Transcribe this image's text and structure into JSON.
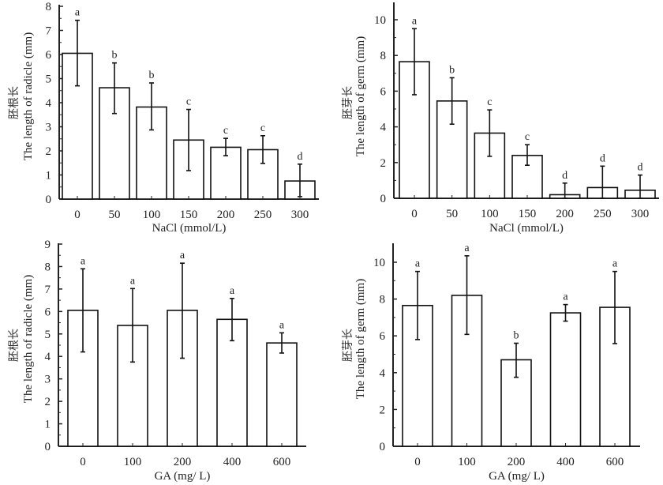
{
  "chart_data": [
    {
      "type": "bar",
      "id": "nacl-radicle",
      "categories": [
        "0",
        "50",
        "100",
        "150",
        "200",
        "250",
        "300"
      ],
      "values": [
        6.05,
        4.62,
        3.82,
        2.45,
        2.15,
        2.05,
        0.75
      ],
      "error_upper": [
        7.42,
        5.65,
        4.82,
        3.72,
        2.52,
        2.63,
        1.45
      ],
      "error_lower": [
        4.7,
        3.55,
        2.87,
        1.18,
        1.8,
        1.48,
        0.1
      ],
      "significance": [
        "a",
        "b",
        "b",
        "c",
        "c",
        "c",
        "d"
      ],
      "xlabel": "NaCl (mmol/L)",
      "ylabel_cn": "胚根长",
      "ylabel": "The length of  radicle (mm)",
      "ylim": [
        0,
        8
      ],
      "yticks": [
        "0",
        "1",
        "2",
        "3",
        "4",
        "5",
        "6",
        "7",
        "8"
      ],
      "grid": false
    },
    {
      "type": "bar",
      "id": "nacl-germ",
      "categories": [
        "0",
        "50",
        "100",
        "150",
        "200",
        "250",
        "300"
      ],
      "values": [
        7.65,
        5.45,
        3.65,
        2.4,
        0.2,
        0.6,
        0.45
      ],
      "error_upper": [
        9.5,
        6.75,
        4.95,
        3.0,
        0.85,
        1.8,
        1.3
      ],
      "error_lower": [
        5.8,
        4.15,
        2.35,
        1.85,
        0,
        0,
        0
      ],
      "significance": [
        "a",
        "b",
        "c",
        "c",
        "d",
        "d",
        "d"
      ],
      "xlabel": "NaCl (mmol/L)",
      "ylabel_cn": "胚芽长",
      "ylabel": "The length of  germ (mm)",
      "ylim": [
        0,
        11
      ],
      "yticks": [
        "0",
        "2",
        "4",
        "6",
        "8",
        "10"
      ],
      "grid": false
    },
    {
      "type": "bar",
      "id": "ga-radicle",
      "categories": [
        "0",
        "100",
        "200",
        "400",
        "600"
      ],
      "values": [
        6.05,
        5.38,
        6.05,
        5.65,
        4.6
      ],
      "error_upper": [
        7.9,
        7.02,
        8.15,
        6.58,
        5.05
      ],
      "error_lower": [
        4.2,
        3.75,
        3.92,
        4.7,
        4.15
      ],
      "significance": [
        "a",
        "a",
        "a",
        "a",
        "a"
      ],
      "xlabel": "GA (mg/ L)",
      "ylabel_cn": "胚根长",
      "ylabel": "The length of  radicle (mm)",
      "ylim": [
        0,
        9
      ],
      "yticks": [
        "0",
        "1",
        "2",
        "3",
        "4",
        "5",
        "6",
        "7",
        "8",
        "9"
      ],
      "grid": false
    },
    {
      "type": "bar",
      "id": "ga-germ",
      "categories": [
        "0",
        "100",
        "200",
        "400",
        "600"
      ],
      "values": [
        7.65,
        8.2,
        4.7,
        7.25,
        7.55
      ],
      "error_upper": [
        9.5,
        10.35,
        5.6,
        7.7,
        9.5
      ],
      "error_lower": [
        5.8,
        6.08,
        3.75,
        6.8,
        5.58
      ],
      "significance": [
        "a",
        "a",
        "b",
        "a",
        "a"
      ],
      "xlabel": "GA (mg/ L)",
      "ylabel_cn": "胚芽长",
      "ylabel": "The length of  germ (mm)",
      "ylim": [
        0,
        11
      ],
      "yticks": [
        "0",
        "2",
        "4",
        "6",
        "8",
        "10"
      ],
      "grid": false
    }
  ]
}
